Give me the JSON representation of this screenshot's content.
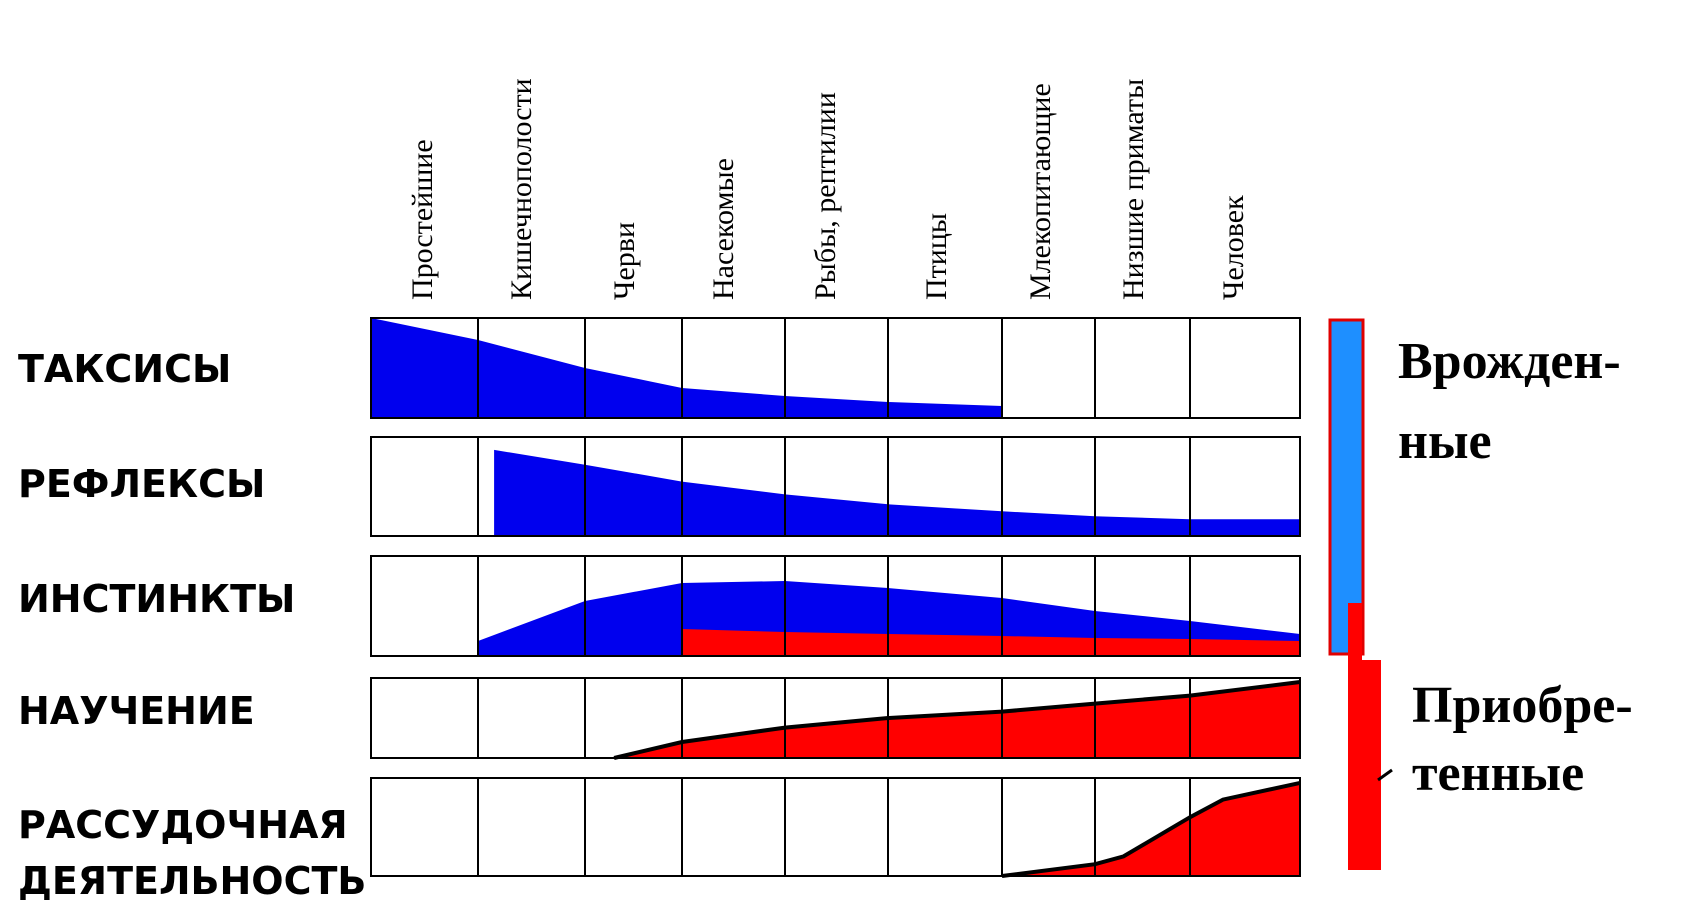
{
  "columns": [
    "Простейшие",
    "Кишечнополости",
    "Черви",
    "Насекомые",
    "Рыбы, рептилии",
    "Птицы",
    "Млекопитающие",
    "Низшие приматы",
    "Человек"
  ],
  "rows": [
    {
      "label_lines": [
        "ТАКСИСЫ"
      ]
    },
    {
      "label_lines": [
        "РЕФЛЕКСЫ"
      ]
    },
    {
      "label_lines": [
        "ИНСТИНКТЫ"
      ]
    },
    {
      "label_lines": [
        "НАУЧЕНИЕ"
      ]
    },
    {
      "label_lines": [
        "РАССУДОЧНАЯ",
        "ДЕЯТЕЛЬНОСТЬ"
      ]
    }
  ],
  "legend": {
    "innate": {
      "line1": "Врожден-",
      "line2": "ные"
    },
    "acquired": {
      "line1": "Приобре-",
      "line2": "тенные"
    }
  },
  "colors": {
    "innate_fill": "#0000ee",
    "acquired_fill": "#ff0000",
    "innate_bar": "#1e8fff",
    "grid": "#000000"
  },
  "chart_data": {
    "type": "area",
    "x": [
      "Простейшие",
      "Кишечнополости",
      "Черви",
      "Насекомые",
      "Рыбы, рептилии",
      "Птицы",
      "Млекопитающие",
      "Низшие приматы",
      "Человек"
    ],
    "ylim": [
      0,
      1
    ],
    "series": [
      {
        "row": "ТАКСИСЫ",
        "color": "innate",
        "points": [
          [
            0,
            1.0
          ],
          [
            1,
            0.78
          ],
          [
            2,
            0.5
          ],
          [
            3,
            0.3
          ],
          [
            4,
            0.22
          ],
          [
            5,
            0.16
          ],
          [
            6,
            0.12
          ]
        ]
      },
      {
        "row": "РЕФЛЕКСЫ",
        "color": "innate",
        "points": [
          [
            1.15,
            0.0
          ],
          [
            1.15,
            0.87
          ],
          [
            2,
            0.72
          ],
          [
            3,
            0.55
          ],
          [
            4,
            0.42
          ],
          [
            5,
            0.32
          ],
          [
            6,
            0.25
          ],
          [
            7,
            0.2
          ],
          [
            8,
            0.17
          ],
          [
            9,
            0.17
          ]
        ]
      },
      {
        "row": "ИНСТИНКТЫ",
        "color": "innate",
        "points": [
          [
            1,
            0.15
          ],
          [
            2,
            0.55
          ],
          [
            3,
            0.73
          ],
          [
            4,
            0.75
          ],
          [
            5,
            0.68
          ],
          [
            6,
            0.58
          ],
          [
            7,
            0.45
          ],
          [
            8,
            0.35
          ],
          [
            9,
            0.22
          ]
        ]
      },
      {
        "row": "ИНСТИНКТЫ",
        "color": "acquired",
        "points": [
          [
            3,
            0.27
          ],
          [
            4,
            0.24
          ],
          [
            5,
            0.22
          ],
          [
            6,
            0.2
          ],
          [
            7,
            0.18
          ],
          [
            8,
            0.17
          ],
          [
            9,
            0.15
          ]
        ]
      },
      {
        "row": "НАУЧЕНИЕ",
        "color": "acquired",
        "points": [
          [
            2.3,
            0.0
          ],
          [
            3,
            0.2
          ],
          [
            4,
            0.38
          ],
          [
            5,
            0.5
          ],
          [
            6,
            0.58
          ],
          [
            7,
            0.68
          ],
          [
            8,
            0.78
          ],
          [
            9,
            0.95
          ]
        ]
      },
      {
        "row": "РАССУДОЧНАЯ ДЕЯТЕЛЬНОСТЬ",
        "color": "acquired",
        "points": [
          [
            6,
            0.0
          ],
          [
            7,
            0.12
          ],
          [
            7.3,
            0.2
          ],
          [
            8,
            0.6
          ],
          [
            8.3,
            0.78
          ],
          [
            9,
            0.95
          ]
        ]
      }
    ]
  }
}
